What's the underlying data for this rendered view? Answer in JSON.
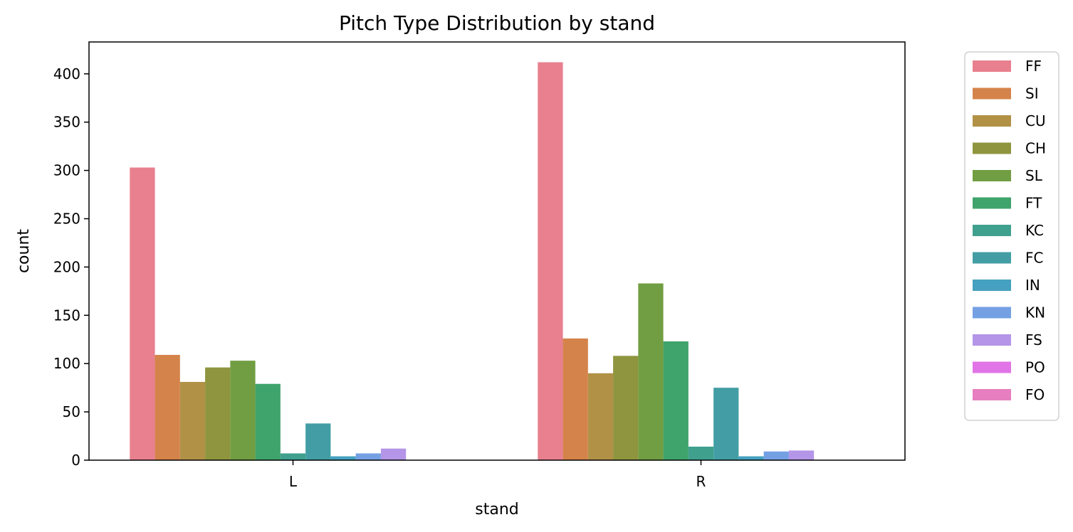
{
  "chart_data": {
    "type": "bar",
    "title": "Pitch Type Distribution by stand",
    "xlabel": "stand",
    "ylabel": "count",
    "categories": [
      "L",
      "R"
    ],
    "ylim": [
      0,
      433
    ],
    "yticks": [
      0,
      50,
      100,
      150,
      200,
      250,
      300,
      350,
      400
    ],
    "grid": false,
    "legend_position": "outside-right",
    "series": [
      {
        "name": "FF",
        "color": "#e8808f",
        "values": [
          303,
          412
        ]
      },
      {
        "name": "SI",
        "color": "#d4834a",
        "values": [
          109,
          126
        ]
      },
      {
        "name": "CU",
        "color": "#b19146",
        "values": [
          81,
          90
        ]
      },
      {
        "name": "CH",
        "color": "#8f953e",
        "values": [
          96,
          108
        ]
      },
      {
        "name": "SL",
        "color": "#719e42",
        "values": [
          103,
          183
        ]
      },
      {
        "name": "FT",
        "color": "#3fa36c",
        "values": [
          79,
          123
        ]
      },
      {
        "name": "KC",
        "color": "#40a08e",
        "values": [
          7,
          14
        ]
      },
      {
        "name": "FC",
        "color": "#429ea4",
        "values": [
          38,
          75
        ]
      },
      {
        "name": "IN",
        "color": "#45a1bf",
        "values": [
          4,
          4
        ]
      },
      {
        "name": "KN",
        "color": "#74a0e3",
        "values": [
          7,
          9
        ]
      },
      {
        "name": "FS",
        "color": "#b495e8",
        "values": [
          12,
          10
        ]
      },
      {
        "name": "PO",
        "color": "#e174e6",
        "values": [
          0,
          0
        ]
      },
      {
        "name": "FO",
        "color": "#e67ebf",
        "values": [
          0,
          0
        ]
      }
    ]
  }
}
